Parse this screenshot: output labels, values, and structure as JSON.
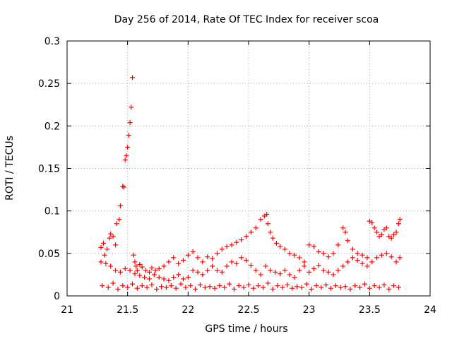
{
  "chart_data": {
    "type": "scatter",
    "title": "Day 256 of 2014, Rate Of TEC Index for receiver scoa",
    "xlabel": "GPS time / hours",
    "ylabel": "ROTI / TECUs",
    "xlim": [
      21,
      24
    ],
    "ylim": [
      0,
      0.3
    ],
    "x_ticks": [
      21,
      21.5,
      22,
      22.5,
      23,
      23.5,
      24
    ],
    "x_tick_labels": [
      "21",
      "21.5",
      "22",
      "22.5",
      "23",
      "23.5",
      "24"
    ],
    "y_ticks": [
      0,
      0.05,
      0.1,
      0.15,
      0.2,
      0.25,
      0.3
    ],
    "y_tick_labels": [
      "0",
      "0.05",
      "0.1",
      "0.15",
      "0.2",
      "0.25",
      "0.3"
    ],
    "grid": true,
    "marker": "+",
    "color": "#ff0000",
    "series": [
      {
        "name": "ROTI",
        "x": [
          21.28,
          21.3,
          21.31,
          21.33,
          21.35,
          21.36,
          21.38,
          21.4,
          21.41,
          21.43,
          21.44,
          21.46,
          21.47,
          21.48,
          21.49,
          21.5,
          21.51,
          21.52,
          21.53,
          21.54,
          21.55,
          21.56,
          21.57,
          21.58,
          21.6,
          21.62,
          21.65,
          21.68,
          21.7,
          21.73,
          21.76,
          21.8,
          21.84,
          21.88,
          21.92,
          21.96,
          22.0,
          22.04,
          22.08,
          22.12,
          22.16,
          22.2,
          22.24,
          22.28,
          22.32,
          22.36,
          22.4,
          22.44,
          22.48,
          22.52,
          22.56,
          22.6,
          22.63,
          22.65,
          22.66,
          22.68,
          22.7,
          22.73,
          22.76,
          22.8,
          22.84,
          22.88,
          22.92,
          22.96,
          23.0,
          23.04,
          23.08,
          23.12,
          23.16,
          23.2,
          23.24,
          23.28,
          23.3,
          23.32,
          23.36,
          23.4,
          23.44,
          23.48,
          23.5,
          23.52,
          23.54,
          23.56,
          23.58,
          23.6,
          23.62,
          23.64,
          23.66,
          23.68,
          23.7,
          23.72,
          23.74,
          23.75,
          21.28,
          21.32,
          21.36,
          21.4,
          21.44,
          21.48,
          21.52,
          21.56,
          21.6,
          21.64,
          21.68,
          21.72,
          21.76,
          21.8,
          21.84,
          21.88,
          21.92,
          21.96,
          22.0,
          22.04,
          22.08,
          22.12,
          22.16,
          22.2,
          22.24,
          22.28,
          22.32,
          22.36,
          22.4,
          22.44,
          22.48,
          22.52,
          22.56,
          22.6,
          22.64,
          22.68,
          22.72,
          22.76,
          22.8,
          22.84,
          22.88,
          22.92,
          22.96,
          23.0,
          23.04,
          23.08,
          23.12,
          23.16,
          23.2,
          23.24,
          23.28,
          23.32,
          23.36,
          23.4,
          23.44,
          23.48,
          23.52,
          23.56,
          23.6,
          23.64,
          23.68,
          23.72,
          23.75,
          21.29,
          21.34,
          21.38,
          21.42,
          21.46,
          21.5,
          21.54,
          21.58,
          21.62,
          21.66,
          21.7,
          21.74,
          21.78,
          21.82,
          21.86,
          21.9,
          21.94,
          21.98,
          22.02,
          22.06,
          22.1,
          22.14,
          22.18,
          22.22,
          22.26,
          22.3,
          22.34,
          22.38,
          22.42,
          22.46,
          22.5,
          22.54,
          22.58,
          22.62,
          22.66,
          22.7,
          22.74,
          22.78,
          22.82,
          22.86,
          22.9,
          22.94,
          22.98,
          23.02,
          23.06,
          23.1,
          23.14,
          23.18,
          23.22,
          23.26,
          23.3,
          23.34,
          23.38,
          23.42,
          23.46,
          23.5,
          23.54,
          23.58,
          23.62,
          23.66,
          23.7,
          23.74
        ],
        "y": [
          0.057,
          0.062,
          0.048,
          0.055,
          0.068,
          0.073,
          0.07,
          0.06,
          0.085,
          0.09,
          0.106,
          0.129,
          0.128,
          0.16,
          0.165,
          0.175,
          0.189,
          0.204,
          0.222,
          0.257,
          0.048,
          0.04,
          0.035,
          0.03,
          0.037,
          0.034,
          0.03,
          0.028,
          0.033,
          0.03,
          0.032,
          0.035,
          0.04,
          0.045,
          0.038,
          0.042,
          0.048,
          0.052,
          0.045,
          0.04,
          0.046,
          0.044,
          0.05,
          0.055,
          0.058,
          0.06,
          0.063,
          0.066,
          0.07,
          0.075,
          0.08,
          0.09,
          0.094,
          0.096,
          0.085,
          0.075,
          0.068,
          0.062,
          0.058,
          0.055,
          0.05,
          0.048,
          0.045,
          0.04,
          0.06,
          0.058,
          0.052,
          0.05,
          0.046,
          0.05,
          0.06,
          0.08,
          0.075,
          0.065,
          0.055,
          0.05,
          0.048,
          0.045,
          0.088,
          0.086,
          0.08,
          0.075,
          0.07,
          0.072,
          0.078,
          0.08,
          0.07,
          0.068,
          0.072,
          0.075,
          0.085,
          0.09,
          0.04,
          0.038,
          0.035,
          0.03,
          0.028,
          0.032,
          0.03,
          0.026,
          0.024,
          0.022,
          0.02,
          0.025,
          0.022,
          0.02,
          0.018,
          0.022,
          0.025,
          0.02,
          0.022,
          0.03,
          0.028,
          0.025,
          0.03,
          0.035,
          0.03,
          0.028,
          0.035,
          0.04,
          0.038,
          0.045,
          0.042,
          0.036,
          0.03,
          0.025,
          0.035,
          0.03,
          0.028,
          0.026,
          0.03,
          0.025,
          0.022,
          0.03,
          0.035,
          0.028,
          0.032,
          0.036,
          0.03,
          0.028,
          0.025,
          0.03,
          0.035,
          0.04,
          0.045,
          0.042,
          0.038,
          0.035,
          0.04,
          0.045,
          0.048,
          0.05,
          0.046,
          0.04,
          0.045,
          0.012,
          0.01,
          0.015,
          0.008,
          0.012,
          0.01,
          0.014,
          0.009,
          0.012,
          0.01,
          0.013,
          0.008,
          0.011,
          0.01,
          0.012,
          0.009,
          0.014,
          0.01,
          0.012,
          0.008,
          0.013,
          0.01,
          0.011,
          0.009,
          0.012,
          0.01,
          0.014,
          0.008,
          0.012,
          0.01,
          0.013,
          0.009,
          0.012,
          0.01,
          0.015,
          0.008,
          0.012,
          0.01,
          0.013,
          0.009,
          0.011,
          0.01,
          0.014,
          0.008,
          0.012,
          0.01,
          0.013,
          0.009,
          0.012,
          0.01,
          0.011,
          0.008,
          0.012,
          0.01,
          0.014,
          0.009,
          0.012,
          0.01,
          0.013,
          0.008,
          0.012,
          0.01
        ]
      }
    ]
  }
}
